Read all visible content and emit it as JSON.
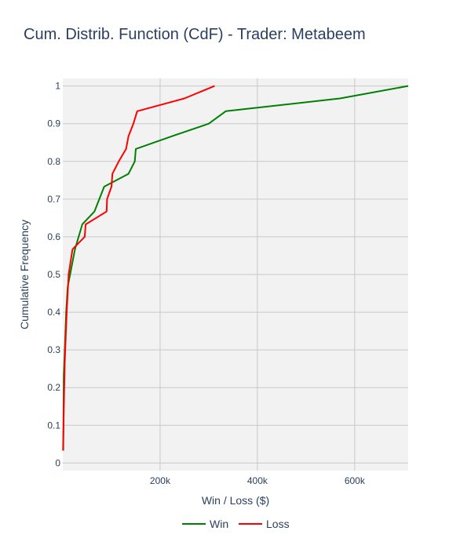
{
  "chart_data": {
    "type": "line",
    "title": "Cum. Distrib. Function (CdF) - Trader: Metabeem",
    "xlabel": "Win / Loss ($)",
    "ylabel": "Cumulative Frequency",
    "xlim": [
      0,
      710000
    ],
    "ylim": [
      -0.02,
      1.02
    ],
    "grid": true,
    "legend_position": "bottom-center",
    "x_ticks": [
      {
        "value": 200000,
        "label": "200k"
      },
      {
        "value": 400000,
        "label": "400k"
      },
      {
        "value": 600000,
        "label": "600k"
      }
    ],
    "y_ticks": [
      {
        "value": 0,
        "label": "0"
      },
      {
        "value": 0.1,
        "label": "0.1"
      },
      {
        "value": 0.2,
        "label": "0.2"
      },
      {
        "value": 0.3,
        "label": "0.3"
      },
      {
        "value": 0.4,
        "label": "0.4"
      },
      {
        "value": 0.5,
        "label": "0.5"
      },
      {
        "value": 0.6,
        "label": "0.6"
      },
      {
        "value": 0.7,
        "label": "0.7"
      },
      {
        "value": 0.8,
        "label": "0.8"
      },
      {
        "value": 0.9,
        "label": "0.9"
      },
      {
        "value": 1,
        "label": "1"
      }
    ],
    "series": [
      {
        "name": "Win",
        "color": "#008000",
        "x": [
          1000,
          2000,
          4000,
          7000,
          10000,
          15000,
          25000,
          40000,
          65000,
          85000,
          135000,
          148000,
          150000,
          225000,
          300000,
          335000,
          570000,
          710000
        ],
        "y": [
          0.033,
          0.233,
          0.3,
          0.4,
          0.467,
          0.5,
          0.567,
          0.633,
          0.667,
          0.733,
          0.767,
          0.8,
          0.833,
          0.867,
          0.9,
          0.933,
          0.967,
          1.0
        ]
      },
      {
        "name": "Loss",
        "color": "#ff0000",
        "x": [
          500,
          2000,
          4000,
          6000,
          8000,
          12000,
          20000,
          45000,
          47000,
          90000,
          91000,
          100000,
          102000,
          115000,
          130000,
          135000,
          145000,
          153000,
          250000,
          312000
        ],
        "y": [
          0.033,
          0.133,
          0.267,
          0.333,
          0.4,
          0.5,
          0.567,
          0.6,
          0.633,
          0.667,
          0.7,
          0.733,
          0.767,
          0.8,
          0.833,
          0.867,
          0.9,
          0.933,
          0.967,
          1.0
        ]
      }
    ]
  }
}
